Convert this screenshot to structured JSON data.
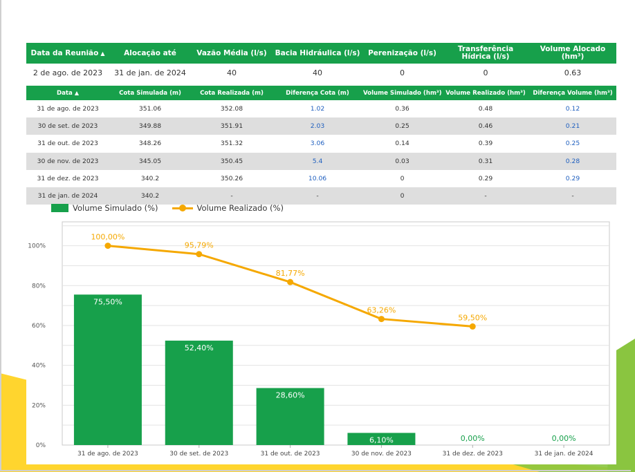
{
  "summary_table": {
    "headers": [
      "Data da Reunião",
      "Alocação até",
      "Vazão Média (l/s)",
      "Bacia Hidráulica (l/s)",
      "Perenização (l/s)",
      "Transferência Hídrica (l/s)",
      "Volume Alocado (hm³)"
    ],
    "sort_indicator": "▲",
    "row": [
      "2 de ago. de 2023",
      "31 de jan. de 2024",
      "40",
      "40",
      "0",
      "0",
      "0.63"
    ]
  },
  "detail_table": {
    "headers": [
      "Data",
      "Cota Simulada (m)",
      "Cota Realizada (m)",
      "Diferença Cota (m)",
      "Volume Simulado (hm³)",
      "Volume Realizado (hm³)",
      "Diferença Volume (hm³)"
    ],
    "sort_indicator": "▲",
    "rows": [
      [
        "31 de ago. de 2023",
        "351.06",
        "352.08",
        "1.02",
        "0.36",
        "0.48",
        "0.12"
      ],
      [
        "30 de set. de 2023",
        "349.88",
        "351.91",
        "2.03",
        "0.25",
        "0.46",
        "0.21"
      ],
      [
        "31 de out. de 2023",
        "348.26",
        "351.32",
        "3.06",
        "0.14",
        "0.39",
        "0.25"
      ],
      [
        "30 de nov. de 2023",
        "345.05",
        "350.45",
        "5.4",
        "0.03",
        "0.31",
        "0.28"
      ],
      [
        "31 de dez. de 2023",
        "340.2",
        "350.26",
        "10.06",
        "0",
        "0.29",
        "0.29"
      ],
      [
        "31 de jan. de 2024",
        "340.2",
        "-",
        "-",
        "0",
        "-",
        "-"
      ]
    ]
  },
  "legend": {
    "bar_label": "Volume Simulado (%)",
    "line_label": "Volume Realizado (%)"
  },
  "colors": {
    "bar": "#17a04b",
    "line": "#f5a800",
    "header_bg": "#17a04b",
    "alt_row": "#dedede",
    "link_blue": "#1f5fbf"
  },
  "chart_data": {
    "type": "bar",
    "categories": [
      "31 de ago. de 2023",
      "30 de set. de 2023",
      "31 de out. de 2023",
      "30 de nov. de 2023",
      "31 de dez. de 2023",
      "31 de jan. de 2024"
    ],
    "series": [
      {
        "name": "Volume Simulado (%)",
        "type": "bar",
        "values": [
          75.5,
          52.4,
          28.6,
          6.1,
          0,
          0
        ],
        "labels": [
          "75,50%",
          "52,40%",
          "28,60%",
          "6,10%",
          "0,00%",
          "0,00%"
        ]
      },
      {
        "name": "Volume Realizado (%)",
        "type": "line",
        "values": [
          100,
          95.79,
          81.77,
          63.26,
          59.5,
          null
        ],
        "labels": [
          "100,00%",
          "95,79%",
          "81,77%",
          "63,26%",
          "59,50%",
          ""
        ]
      }
    ],
    "y_ticks": [
      "0%",
      "20%",
      "40%",
      "60%",
      "80%",
      "100%"
    ],
    "ylim": [
      0,
      112
    ],
    "grid": true,
    "legend_position": "top-left"
  }
}
